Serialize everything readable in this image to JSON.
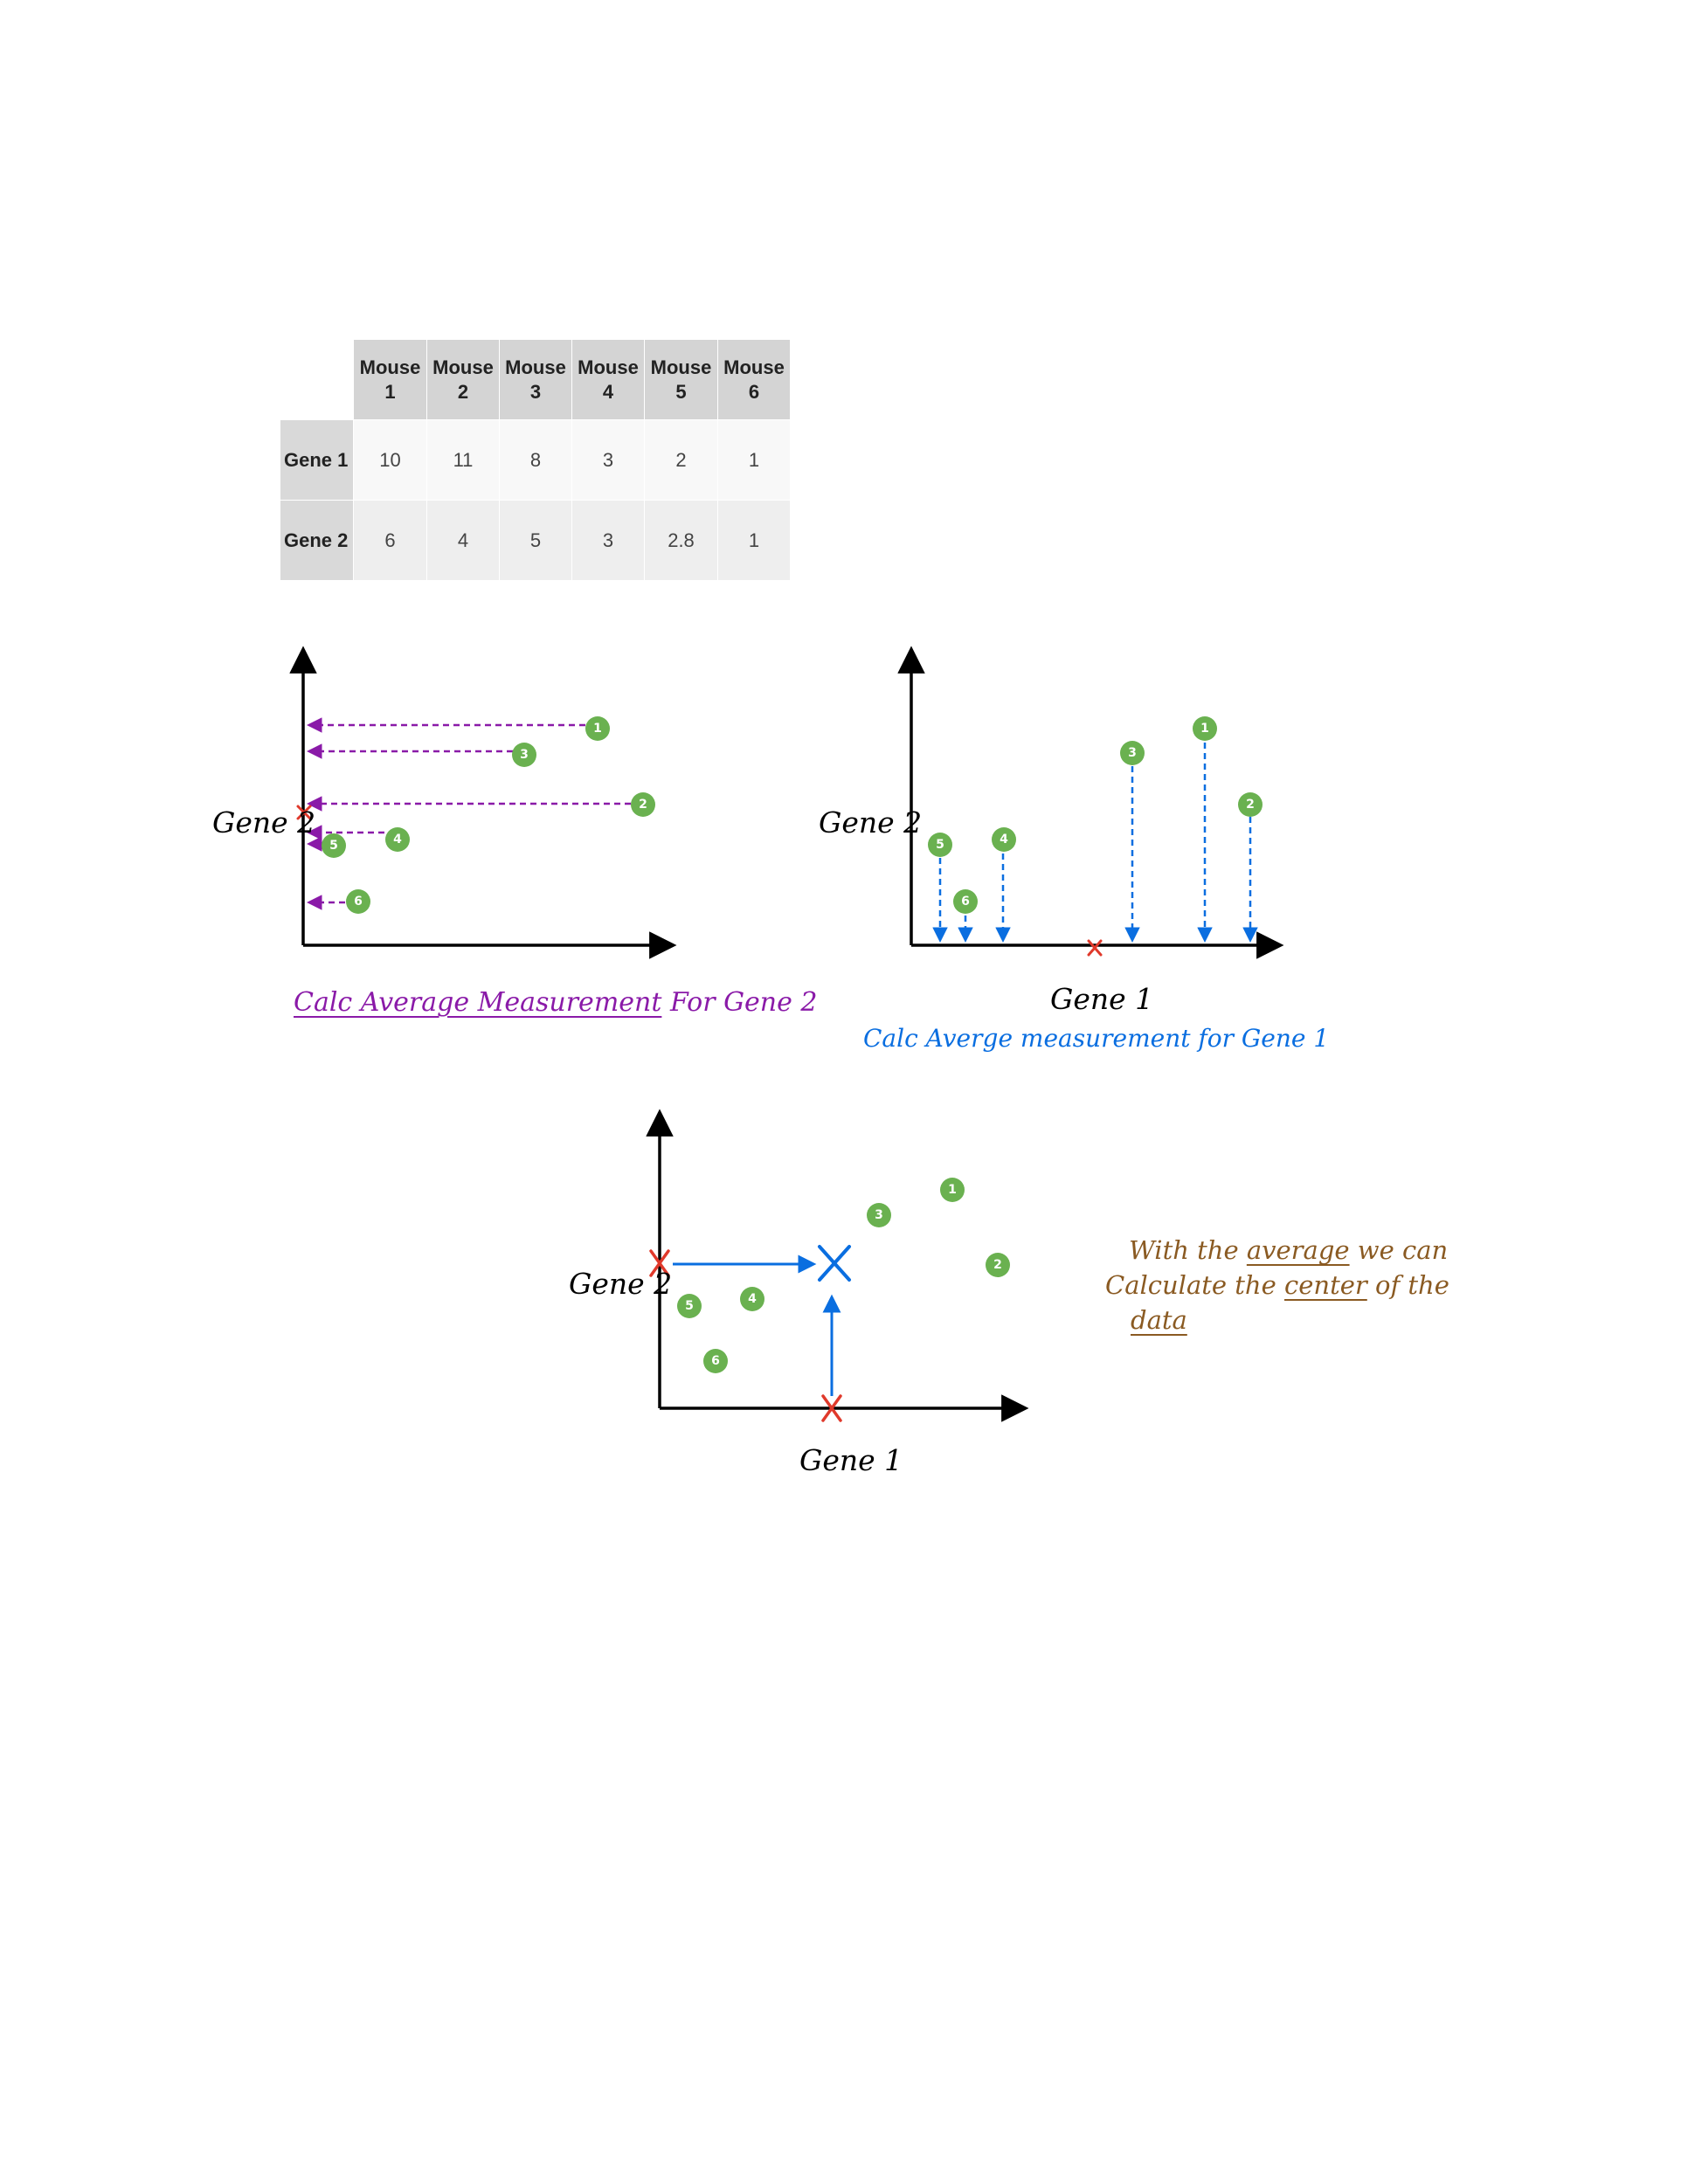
{
  "table": {
    "columns": [
      {
        "line1": "Mouse",
        "line2": "1"
      },
      {
        "line1": "Mouse",
        "line2": "2"
      },
      {
        "line1": "Mouse",
        "line2": "3"
      },
      {
        "line1": "Mouse",
        "line2": "4"
      },
      {
        "line1": "Mouse",
        "line2": "5"
      },
      {
        "line1": "Mouse",
        "line2": "6"
      }
    ],
    "rows": [
      {
        "label": "Gene 1",
        "values": [
          "10",
          "11",
          "8",
          "3",
          "2",
          "1"
        ]
      },
      {
        "label": "Gene 2",
        "values": [
          "6",
          "4",
          "5",
          "3",
          "2.8",
          "1"
        ]
      }
    ]
  },
  "diagram1": {
    "ylabel": "Gene 2",
    "caption_underlined": "Calc Average Measurement",
    "caption_rest": "For Gene 2",
    "markers": [
      "1",
      "2",
      "3",
      "4",
      "5",
      "6"
    ]
  },
  "diagram2": {
    "ylabel": "Gene 2",
    "xlabel": "Gene 1",
    "caption": "Calc Averge measurement for Gene 1",
    "markers": [
      "1",
      "2",
      "3",
      "4",
      "5",
      "6"
    ]
  },
  "diagram3": {
    "ylabel": "Gene 2",
    "xlabel": "Gene 1",
    "markers": [
      "1",
      "2",
      "3",
      "4",
      "5",
      "6"
    ],
    "note": {
      "w1": "With",
      "w2": "the",
      "w3": "average",
      "w4": "we",
      "w5": "can",
      "w6": "Calculate",
      "w7": "the",
      "w8": "center",
      "w9": "of",
      "w10": "the",
      "w11": "data"
    }
  },
  "colors": {
    "marker": "#6ab150",
    "purple": "#8a1aa8",
    "blue": "#0a6ee0",
    "red": "#e0392b",
    "brown": "#8a5a22",
    "axis": "#000000"
  },
  "icons": {
    "mean": "x-mark-icon",
    "axis_end": "arrowhead-icon"
  }
}
